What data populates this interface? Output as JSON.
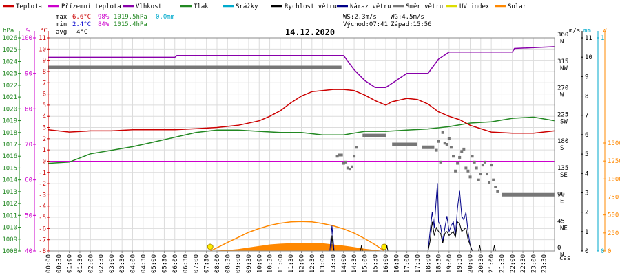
{
  "chart_data": {
    "type": "line",
    "title": "14.12.2020",
    "xlabel": "čas",
    "legend": [
      {
        "name": "Teplota",
        "color": "#cc0000"
      },
      {
        "name": "Přízemní teplota",
        "color": "#cc00cc"
      },
      {
        "name": "Vlhkost",
        "color": "#8800aa"
      },
      {
        "name": "Tlak",
        "color": "#228822"
      },
      {
        "name": "Srážky",
        "color": "#00aacc"
      },
      {
        "name": "Rychlost větru",
        "color": "#000000"
      },
      {
        "name": "Náraz větru",
        "color": "#000088"
      },
      {
        "name": "Směr větru",
        "color": "#777777"
      },
      {
        "name": "UV index",
        "color": "#dddd00"
      },
      {
        "name": "Solar",
        "color": "#ff8800"
      }
    ],
    "stats": {
      "max_label": "max",
      "max_temp": "6.6°C",
      "max_hum": "98%",
      "max_press": "1019.5hPa",
      "max_rain": "0.0mm",
      "min_label": "min",
      "min_temp": "2.4°C",
      "min_hum": "84%",
      "min_press": "1015.4hPa",
      "avg_label": "avg",
      "avg_temp": "4°C"
    },
    "wind_info": {
      "ws": "WS:2.3m/s",
      "wg": "WG:4.5m/s",
      "sunrise": "Východ:07:41",
      "sunset": "Západ:15:56"
    },
    "axes": {
      "pressure": {
        "unit": "hPa",
        "color": "#228822",
        "range": [
          1008,
          1026
        ],
        "ticks": [
          1008,
          1009,
          1010,
          1011,
          1012,
          1013,
          1014,
          1015,
          1016,
          1017,
          1018,
          1019,
          1020,
          1021,
          1022,
          1023,
          1024,
          1025,
          1026
        ]
      },
      "humidity": {
        "unit": "%",
        "color": "#cc00cc",
        "range": [
          40,
          100
        ],
        "ticks": [
          40,
          50,
          60,
          70,
          80,
          90,
          100
        ]
      },
      "temperature": {
        "unit": "°C",
        "color": "#cc0000",
        "range": [
          -8,
          11
        ],
        "ticks": [
          -8,
          -7,
          -6,
          -5,
          -4,
          -3,
          -2,
          -1,
          0,
          1,
          2,
          3,
          4,
          5,
          6,
          7,
          8,
          9,
          10,
          11
        ]
      },
      "wind_dir": {
        "unit": "",
        "color": "#000000",
        "range": [
          0,
          360
        ],
        "ticks": [
          0,
          45,
          90,
          135,
          180,
          225,
          270,
          315,
          360
        ],
        "labels": [
          "N",
          "NE",
          "E",
          "SE",
          "S",
          "SW",
          "W",
          "NW",
          "N"
        ]
      },
      "wind_speed": {
        "unit": "m/s",
        "color": "#000000",
        "range": [
          0,
          11
        ],
        "ticks": [
          0,
          1,
          2,
          3,
          4,
          5,
          6,
          7,
          8,
          9,
          10,
          11
        ]
      },
      "rain": {
        "unit": "mm",
        "color": "#00aacc",
        "range": [
          0,
          1
        ],
        "ticks": [
          0,
          1
        ]
      },
      "solar": {
        "unit": "W",
        "color": "#ff8800",
        "range": [
          0,
          2000
        ],
        "ticks": [
          0,
          250,
          500,
          750,
          1000,
          1250,
          1500
        ]
      }
    },
    "x_ticks": [
      "00:00",
      "00:30",
      "01:00",
      "01:30",
      "02:00",
      "02:30",
      "03:00",
      "03:30",
      "04:00",
      "04:30",
      "05:00",
      "05:30",
      "06:00",
      "06:30",
      "07:00",
      "07:30",
      "08:00",
      "08:30",
      "09:00",
      "09:30",
      "10:00",
      "10:30",
      "11:00",
      "11:30",
      "12:00",
      "12:30",
      "13:00",
      "13:30",
      "14:00",
      "14:30",
      "15:00",
      "15:30",
      "16:00",
      "16:30",
      "17:00",
      "17:30",
      "18:00",
      "18:30",
      "19:00",
      "19:30",
      "20:00",
      "20:30",
      "21:00",
      "21:30",
      "22:00",
      "22:30",
      "23:00",
      "23:30"
    ],
    "series": {
      "temperature": [
        [
          0,
          2.8
        ],
        [
          1,
          2.6
        ],
        [
          2,
          2.7
        ],
        [
          3,
          2.7
        ],
        [
          4,
          2.8
        ],
        [
          5,
          2.8
        ],
        [
          6,
          2.8
        ],
        [
          7,
          2.9
        ],
        [
          8,
          3.0
        ],
        [
          9,
          3.2
        ],
        [
          10,
          3.6
        ],
        [
          10.5,
          4.0
        ],
        [
          11,
          4.5
        ],
        [
          11.5,
          5.2
        ],
        [
          12,
          5.8
        ],
        [
          12.5,
          6.2
        ],
        [
          13,
          6.3
        ],
        [
          13.5,
          6.4
        ],
        [
          14,
          6.4
        ],
        [
          14.5,
          6.3
        ],
        [
          15,
          5.9
        ],
        [
          15.5,
          5.4
        ],
        [
          16,
          5.0
        ],
        [
          16.3,
          5.3
        ],
        [
          17,
          5.6
        ],
        [
          17.5,
          5.5
        ],
        [
          18,
          5.1
        ],
        [
          18.5,
          4.4
        ],
        [
          19,
          4.0
        ],
        [
          19.5,
          3.7
        ],
        [
          20,
          3.2
        ],
        [
          21,
          2.6
        ],
        [
          22,
          2.5
        ],
        [
          23,
          2.5
        ],
        [
          24,
          2.7
        ]
      ],
      "humidity": [
        [
          0,
          94.5
        ],
        [
          6,
          94.5
        ],
        [
          6.1,
          95
        ],
        [
          14,
          95
        ],
        [
          14.5,
          91
        ],
        [
          15,
          88
        ],
        [
          15.5,
          86
        ],
        [
          16,
          86
        ],
        [
          16.5,
          88
        ],
        [
          17,
          90
        ],
        [
          18,
          90
        ],
        [
          18.5,
          94
        ],
        [
          19,
          96
        ],
        [
          22,
          96
        ],
        [
          22.1,
          97
        ],
        [
          24,
          97.5
        ]
      ],
      "pressure": [
        [
          0,
          1015.4
        ],
        [
          1,
          1015.5
        ],
        [
          2,
          1016.2
        ],
        [
          3,
          1016.5
        ],
        [
          4,
          1016.8
        ],
        [
          5,
          1017.2
        ],
        [
          6,
          1017.6
        ],
        [
          7,
          1018.0
        ],
        [
          8,
          1018.2
        ],
        [
          9,
          1018.2
        ],
        [
          10,
          1018.1
        ],
        [
          11,
          1018.0
        ],
        [
          12,
          1018.0
        ],
        [
          13,
          1017.8
        ],
        [
          14,
          1017.8
        ],
        [
          15,
          1018.1
        ],
        [
          16,
          1018.1
        ],
        [
          17,
          1018.2
        ],
        [
          18,
          1018.3
        ],
        [
          19,
          1018.5
        ],
        [
          20,
          1018.8
        ],
        [
          21,
          1018.9
        ],
        [
          22,
          1019.2
        ],
        [
          23,
          1019.3
        ],
        [
          24,
          1019.0
        ]
      ],
      "ground_temperature": [
        [
          0,
          0.0
        ],
        [
          24,
          0.0
        ]
      ],
      "wind_dir_bars": [
        [
          [
            0,
            310
          ],
          [
            13.9,
            310
          ]
        ],
        [
          [
            14.9,
            195
          ],
          [
            16.0,
            195
          ]
        ],
        [
          [
            16.3,
            180
          ],
          [
            17.5,
            180
          ]
        ],
        [
          [
            17.7,
            175
          ],
          [
            18.3,
            175
          ]
        ],
        [
          [
            21.5,
            95
          ],
          [
            24,
            95
          ]
        ]
      ],
      "wind_dir_points": [
        [
          13.7,
          160
        ],
        [
          13.8,
          162
        ],
        [
          13.9,
          162
        ],
        [
          14.0,
          148
        ],
        [
          14.1,
          150
        ],
        [
          14.2,
          140
        ],
        [
          14.3,
          138
        ],
        [
          14.4,
          142
        ],
        [
          14.5,
          160
        ],
        [
          14.6,
          175
        ],
        [
          18.4,
          170
        ],
        [
          18.5,
          185
        ],
        [
          18.6,
          150
        ],
        [
          18.7,
          200
        ],
        [
          18.8,
          182
        ],
        [
          18.9,
          180
        ],
        [
          19.0,
          190
        ],
        [
          19.1,
          175
        ],
        [
          19.2,
          160
        ],
        [
          19.3,
          135
        ],
        [
          19.4,
          148
        ],
        [
          19.5,
          158
        ],
        [
          19.6,
          168
        ],
        [
          19.7,
          172
        ],
        [
          19.8,
          140
        ],
        [
          19.9,
          135
        ],
        [
          20.0,
          125
        ],
        [
          20.1,
          160
        ],
        [
          20.2,
          150
        ],
        [
          20.3,
          140
        ],
        [
          20.4,
          120
        ],
        [
          20.5,
          130
        ],
        [
          20.6,
          145
        ],
        [
          20.7,
          150
        ],
        [
          20.8,
          130
        ],
        [
          20.9,
          115
        ],
        [
          21.0,
          145
        ],
        [
          21.1,
          120
        ],
        [
          21.2,
          108
        ],
        [
          21.3,
          100
        ]
      ],
      "wind_speed": [
        [
          0,
          0
        ],
        [
          13.4,
          0
        ],
        [
          13.45,
          0.8
        ],
        [
          13.5,
          0.2
        ],
        [
          13.55,
          0
        ],
        [
          14.8,
          0
        ],
        [
          14.85,
          0.3
        ],
        [
          14.9,
          0
        ],
        [
          16.0,
          0
        ],
        [
          16.05,
          0.3
        ],
        [
          16.1,
          0
        ],
        [
          18.0,
          0
        ],
        [
          18.1,
          0.5
        ],
        [
          18.2,
          1.5
        ],
        [
          18.3,
          0.8
        ],
        [
          18.4,
          1.2
        ],
        [
          18.5,
          1.0
        ],
        [
          18.6,
          0.9
        ],
        [
          18.7,
          0.4
        ],
        [
          18.8,
          0.9
        ],
        [
          18.9,
          1.0
        ],
        [
          19.0,
          0.8
        ],
        [
          19.1,
          0.9
        ],
        [
          19.2,
          1.0
        ],
        [
          19.3,
          0.7
        ],
        [
          19.4,
          1.5
        ],
        [
          19.5,
          1.4
        ],
        [
          19.6,
          1.0
        ],
        [
          19.7,
          1.1
        ],
        [
          19.8,
          1.2
        ],
        [
          19.9,
          0.6
        ],
        [
          20.0,
          0.3
        ],
        [
          20.1,
          0
        ],
        [
          20.4,
          0
        ],
        [
          20.45,
          0.3
        ],
        [
          20.5,
          0
        ],
        [
          21.1,
          0
        ],
        [
          21.15,
          0.3
        ],
        [
          21.2,
          0
        ],
        [
          24,
          0
        ]
      ],
      "wind_gust": [
        [
          0,
          0
        ],
        [
          13.35,
          0
        ],
        [
          13.45,
          1.3
        ],
        [
          13.55,
          0
        ],
        [
          18.0,
          0
        ],
        [
          18.1,
          1.0
        ],
        [
          18.2,
          2.0
        ],
        [
          18.3,
          1.2
        ],
        [
          18.4,
          2.8
        ],
        [
          18.45,
          3.5
        ],
        [
          18.5,
          1.5
        ],
        [
          18.6,
          1.3
        ],
        [
          18.7,
          0.5
        ],
        [
          18.8,
          1.2
        ],
        [
          18.9,
          1.8
        ],
        [
          19.0,
          1.0
        ],
        [
          19.1,
          1.3
        ],
        [
          19.2,
          1.5
        ],
        [
          19.3,
          0.8
        ],
        [
          19.4,
          2.2
        ],
        [
          19.5,
          3.1
        ],
        [
          19.6,
          1.8
        ],
        [
          19.7,
          1.6
        ],
        [
          19.8,
          2.0
        ],
        [
          19.9,
          1.0
        ],
        [
          20.0,
          0.3
        ],
        [
          20.1,
          0
        ],
        [
          24,
          0
        ]
      ],
      "solar_max": [
        [
          7.68,
          0
        ],
        [
          8,
          42
        ],
        [
          8.5,
          110
        ],
        [
          9,
          175
        ],
        [
          9.5,
          240
        ],
        [
          10,
          290
        ],
        [
          10.5,
          330
        ],
        [
          11,
          358
        ],
        [
          11.5,
          375
        ],
        [
          12,
          380
        ],
        [
          12.5,
          375
        ],
        [
          13,
          355
        ],
        [
          13.5,
          325
        ],
        [
          14,
          285
        ],
        [
          14.5,
          230
        ],
        [
          15,
          160
        ],
        [
          15.5,
          80
        ],
        [
          15.93,
          0
        ]
      ],
      "solar": [
        [
          7.9,
          0
        ],
        [
          8.3,
          5
        ],
        [
          8.7,
          12
        ],
        [
          9,
          20
        ],
        [
          9.5,
          40
        ],
        [
          10,
          60
        ],
        [
          10.5,
          80
        ],
        [
          11,
          90
        ],
        [
          11.5,
          95
        ],
        [
          12,
          100
        ],
        [
          12.5,
          98
        ],
        [
          13,
          95
        ],
        [
          13.5,
          80
        ],
        [
          14,
          65
        ],
        [
          14.5,
          45
        ],
        [
          15,
          25
        ],
        [
          15.5,
          8
        ],
        [
          15.8,
          0
        ]
      ],
      "sun_markers": [
        [
          7.68,
          0
        ],
        [
          15.93,
          0
        ]
      ]
    }
  }
}
